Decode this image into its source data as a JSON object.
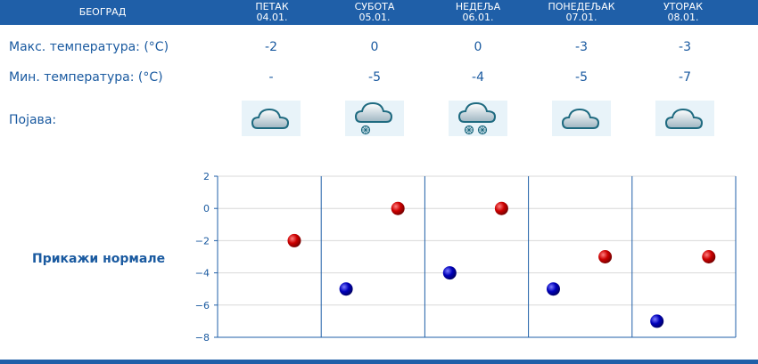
{
  "header": {
    "city": "БЕОГРАД",
    "days": [
      {
        "name": "ПЕТАК",
        "date": "04.01."
      },
      {
        "name": "СУБОТА",
        "date": "05.01."
      },
      {
        "name": "НЕДЕЉА",
        "date": "06.01."
      },
      {
        "name": "ПОНЕДЕЉАК",
        "date": "07.01."
      },
      {
        "name": "УТОРАК",
        "date": "08.01."
      }
    ]
  },
  "rows": {
    "max_label": "Макс. температура: (°C)",
    "min_label": "Мин. температура: (°C)",
    "phenomenon_label": "Појава:"
  },
  "max_values": [
    "-2",
    "0",
    "0",
    "-3",
    "-3"
  ],
  "min_values": [
    "-",
    "-5",
    "-4",
    "-5",
    "-7"
  ],
  "icons": [
    "cloud-icon",
    "cloud-snow-icon",
    "cloud-heavy-snow-icon",
    "cloud-icon",
    "cloud-icon"
  ],
  "show_normals_label": "Прикажи нормале",
  "colors": {
    "header": "#1f5fa8",
    "text": "#1a5aa0",
    "max_dot": "#cc0000",
    "min_dot": "#0000bb"
  },
  "chart_data": {
    "type": "scatter",
    "categories": [
      "04.01.",
      "05.01.",
      "06.01.",
      "07.01.",
      "08.01."
    ],
    "series": [
      {
        "values": [
          -2,
          0,
          0,
          -3,
          -3
        ],
        "color": "#cc0000"
      },
      {
        "values": [
          null,
          -5,
          -4,
          -5,
          -7
        ],
        "color": "#0000bb"
      }
    ],
    "ylim": [
      -8,
      2
    ],
    "yticks": [
      "2",
      "0",
      "−2",
      "−4",
      "−6",
      "−8"
    ],
    "grid": true
  }
}
